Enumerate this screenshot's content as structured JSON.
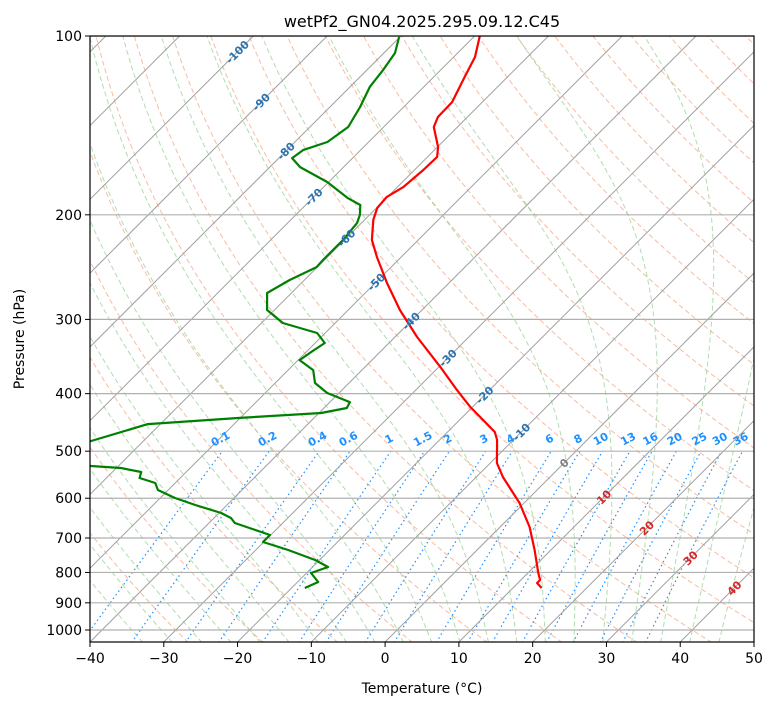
{
  "chart_data": {
    "type": "line",
    "subtype": "skew-t log-p",
    "title": "wetPf2_GN04.2025.295.09.12.C45",
    "xlabel": "Temperature (°C)",
    "ylabel": "Pressure (hPa)",
    "xlim": [
      -40,
      50
    ],
    "ylim_hpa": [
      1050,
      100
    ],
    "xticks": [
      -40,
      -30,
      -20,
      -10,
      0,
      10,
      20,
      30,
      40,
      50
    ],
    "xtick_labels": [
      "−40",
      "−30",
      "−20",
      "−10",
      "0",
      "10",
      "20",
      "30",
      "40",
      "50"
    ],
    "yticks": [
      100,
      200,
      300,
      400,
      500,
      600,
      700,
      800,
      900,
      1000
    ],
    "ytick_labels": [
      "100",
      "200",
      "300",
      "400",
      "500",
      "600",
      "700",
      "800",
      "900",
      "1000"
    ],
    "grid": true,
    "colors": {
      "temperature": "#ff0000",
      "dewpoint": "#008000",
      "isotherm": "#a0a0a0",
      "dry_adiabat": "#f4a582",
      "moist_adiabat": "#8fcf8f",
      "mixing_ratio": "#1e90ff",
      "isotherm_label_cold": "#2b73b0",
      "isotherm_label_zero": "#808080",
      "isotherm_label_warm": "#d62728"
    },
    "isotherm_labels": [
      {
        "value": -100,
        "text": "-100"
      },
      {
        "value": -90,
        "text": "-90"
      },
      {
        "value": -80,
        "text": "-80"
      },
      {
        "value": -70,
        "text": "-70"
      },
      {
        "value": -60,
        "text": "-60"
      },
      {
        "value": -50,
        "text": "-50"
      },
      {
        "value": -40,
        "text": "-40"
      },
      {
        "value": -30,
        "text": "-30"
      },
      {
        "value": -20,
        "text": "-20"
      },
      {
        "value": -10,
        "text": "-10"
      },
      {
        "value": 0,
        "text": "0"
      },
      {
        "value": 10,
        "text": "10"
      },
      {
        "value": 20,
        "text": "20"
      },
      {
        "value": 30,
        "text": "30"
      },
      {
        "value": 40,
        "text": "40"
      }
    ],
    "mixing_ratios_gkg": [
      0.1,
      0.2,
      0.4,
      0.6,
      1,
      1.5,
      2,
      3,
      4,
      6,
      8,
      10,
      13,
      16,
      20,
      25,
      30,
      36
    ],
    "mixing_ratio_labels": [
      "0.1",
      "0.2",
      "0.4",
      "0.6",
      "1",
      "1.5",
      "2",
      "3",
      "4",
      "6",
      "8",
      "10",
      "13",
      "16",
      "20",
      "25",
      "30",
      "36"
    ],
    "series": [
      {
        "name": "temperature",
        "p": [
          100,
          108.5,
          117.2,
          129.2,
          136.9,
          142.3,
          153.8,
          159.8,
          168.1,
          179.6,
          186.6,
          194.8,
          204.1,
          220.4,
          235.5,
          260.5,
          289.2,
          321.2,
          360.7,
          394.5,
          421.3,
          443.1,
          464.2,
          478.7,
          523.5,
          552.7,
          611.4,
          670.8,
          733.4,
          801.6,
          823.7,
          833.4,
          849.8
        ],
        "T": [
          -69.3,
          -67.1,
          -65.8,
          -64.1,
          -64.0,
          -63.2,
          -59.9,
          -58.7,
          -58.8,
          -59.2,
          -60.1,
          -59.9,
          -58.8,
          -56.3,
          -53.3,
          -48.4,
          -43.0,
          -37.0,
          -29.8,
          -24.4,
          -20.3,
          -16.8,
          -13.6,
          -12.2,
          -9.1,
          -6.4,
          -0.6,
          4.0,
          7.8,
          11.4,
          12.6,
          12.6,
          13.9
        ]
      },
      {
        "name": "dewpoint",
        "p": [
          100.4,
          106.8,
          114.1,
          121.9,
          131.7,
          142.3,
          150.8,
          155.6,
          160.5,
          166.2,
          176.1,
          187.3,
          192.5,
          200.1,
          206.4,
          220.4,
          238.3,
          244.9,
          257.5,
          270.8,
          289.2,
          304.2,
          316.2,
          328.7,
          341.8,
          351.2,
          365.1,
          383.9,
          399.1,
          413.3,
          423.0,
          431.2,
          439.7,
          450.1,
          480.6,
          497.7,
          517.4,
          529.6,
          533.7,
          542.0,
          554.8,
          565.6,
          581.2,
          599.5,
          616.0,
          635.3,
          647.7,
          660.5,
          683.9,
          692.0,
          711.0,
          733.4,
          762.4,
          783.3,
          801.6,
          830.3,
          849.8
        ],
        "T": [
          -80.1,
          -78.5,
          -77.8,
          -77.3,
          -75.9,
          -74.8,
          -75.6,
          -77.8,
          -78.2,
          -75.9,
          -70.2,
          -65.3,
          -62.6,
          -61.3,
          -60.6,
          -60.2,
          -60.2,
          -60.1,
          -62.0,
          -63.3,
          -61.0,
          -57.1,
          -51.1,
          -48.7,
          -49.4,
          -49.8,
          -46.6,
          -44.6,
          -41.6,
          -37.3,
          -36.9,
          -39.7,
          -50.3,
          -61.7,
          -67.1,
          -70.1,
          -71.4,
          -63.7,
          -59.4,
          -56.1,
          -55.5,
          -52.7,
          -51.4,
          -48.0,
          -44.3,
          -39.7,
          -37.7,
          -36.5,
          -31.7,
          -30.1,
          -30.1,
          -25.6,
          -20.6,
          -17.9,
          -19.4,
          -17.2,
          -18.2
        ]
      }
    ]
  }
}
